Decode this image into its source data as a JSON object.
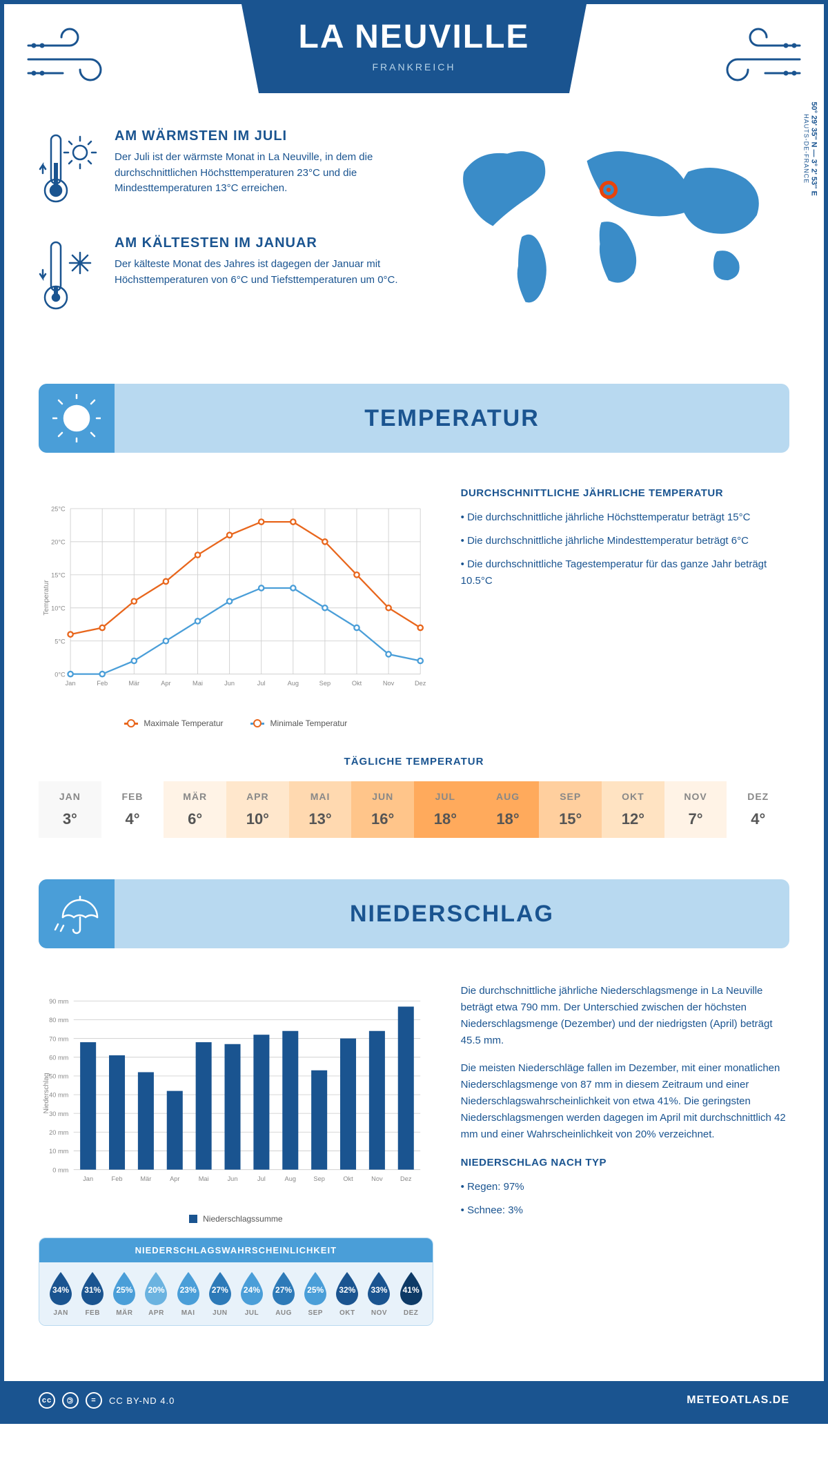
{
  "colors": {
    "primary": "#1a5490",
    "accent": "#4a9ed8",
    "light_blue": "#b8d9f0",
    "pale_blue": "#e8f2fa",
    "orange_line": "#e8661c",
    "blue_line": "#4a9ed8",
    "grid": "#d0d0d0",
    "text_grey": "#888888",
    "marker": "#e8440c"
  },
  "header": {
    "title": "LA NEUVILLE",
    "subtitle": "FRANKREICH"
  },
  "coords": {
    "lat_lon": "50° 29' 35'' N — 3° 2' 53'' E",
    "region": "HAUTS-DE-FRANCE"
  },
  "facts": {
    "warm": {
      "title": "AM WÄRMSTEN IM JULI",
      "body": "Der Juli ist der wärmste Monat in La Neuville, in dem die durchschnittlichen Höchsttemperaturen 23°C und die Mindesttemperaturen 13°C erreichen."
    },
    "cold": {
      "title": "AM KÄLTESTEN IM JANUAR",
      "body": "Der kälteste Monat des Jahres ist dagegen der Januar mit Höchsttemperaturen von 6°C und Tiefsttemperaturen um 0°C."
    }
  },
  "sections": {
    "temp": "TEMPERATUR",
    "precip": "NIEDERSCHLAG"
  },
  "temp_chart": {
    "type": "line",
    "y_label": "Temperatur",
    "y_min": 0,
    "y_max": 25,
    "y_step": 5,
    "months": [
      "Jan",
      "Feb",
      "Mär",
      "Apr",
      "Mai",
      "Jun",
      "Jul",
      "Aug",
      "Sep",
      "Okt",
      "Nov",
      "Dez"
    ],
    "series": [
      {
        "name": "Maximale Temperatur",
        "color": "#e8661c",
        "values": [
          6,
          7,
          11,
          14,
          18,
          21,
          23,
          23,
          20,
          15,
          10,
          7
        ]
      },
      {
        "name": "Minimale Temperatur",
        "color": "#4a9ed8",
        "values": [
          0,
          0,
          2,
          5,
          8,
          11,
          13,
          13,
          10,
          7,
          3,
          2
        ]
      }
    ]
  },
  "temp_text": {
    "heading": "DURCHSCHNITTLICHE JÄHRLICHE TEMPERATUR",
    "bullets": [
      "Die durchschnittliche jährliche Höchsttemperatur beträgt 15°C",
      "Die durchschnittliche jährliche Mindesttemperatur beträgt 6°C",
      "Die durchschnittliche Tagestemperatur für das ganze Jahr beträgt 10.5°C"
    ]
  },
  "daily_temp": {
    "heading": "TÄGLICHE TEMPERATUR",
    "months": [
      "JAN",
      "FEB",
      "MÄR",
      "APR",
      "MAI",
      "JUN",
      "JUL",
      "AUG",
      "SEP",
      "OKT",
      "NOV",
      "DEZ"
    ],
    "values": [
      "3°",
      "4°",
      "6°",
      "10°",
      "13°",
      "16°",
      "18°",
      "18°",
      "15°",
      "12°",
      "7°",
      "4°"
    ],
    "bg_colors": [
      "#f8f8f8",
      "#ffffff",
      "#fff3e6",
      "#ffe7cc",
      "#ffd9b0",
      "#ffc58a",
      "#ffaa5c",
      "#ffaa5c",
      "#ffcf9e",
      "#ffe3c2",
      "#fff3e6",
      "#ffffff"
    ]
  },
  "precip_chart": {
    "type": "bar",
    "y_label": "Niederschlag",
    "y_min": 0,
    "y_max": 90,
    "y_step": 10,
    "months": [
      "Jan",
      "Feb",
      "Mär",
      "Apr",
      "Mai",
      "Jun",
      "Jul",
      "Aug",
      "Sep",
      "Okt",
      "Nov",
      "Dez"
    ],
    "values": [
      68,
      61,
      52,
      42,
      68,
      67,
      72,
      74,
      53,
      70,
      74,
      87
    ],
    "bar_color": "#1a5490",
    "legend": "Niederschlagssumme"
  },
  "precip_text": {
    "p1": "Die durchschnittliche jährliche Niederschlagsmenge in La Neuville beträgt etwa 790 mm. Der Unterschied zwischen der höchsten Niederschlagsmenge (Dezember) und der niedrigsten (April) beträgt 45.5 mm.",
    "p2": "Die meisten Niederschläge fallen im Dezember, mit einer monatlichen Niederschlagsmenge von 87 mm in diesem Zeitraum und einer Niederschlagswahrscheinlichkeit von etwa 41%. Die geringsten Niederschlagsmengen werden dagegen im April mit durchschnittlich 42 mm und einer Wahrscheinlichkeit von 20% verzeichnet.",
    "type_heading": "NIEDERSCHLAG NACH TYP",
    "type_bullets": [
      "Regen: 97%",
      "Schnee: 3%"
    ]
  },
  "precip_prob": {
    "heading": "NIEDERSCHLAGSWAHRSCHEINLICHKEIT",
    "months": [
      "JAN",
      "FEB",
      "MÄR",
      "APR",
      "MAI",
      "JUN",
      "JUL",
      "AUG",
      "SEP",
      "OKT",
      "NOV",
      "DEZ"
    ],
    "values": [
      "34%",
      "31%",
      "25%",
      "20%",
      "23%",
      "27%",
      "24%",
      "27%",
      "25%",
      "32%",
      "33%",
      "41%"
    ],
    "drop_colors": [
      "#1a5490",
      "#1a5490",
      "#4a9ed8",
      "#6bb3e0",
      "#4a9ed8",
      "#2d7ab8",
      "#4a9ed8",
      "#2d7ab8",
      "#4a9ed8",
      "#1a5490",
      "#1a5490",
      "#0d3a66"
    ]
  },
  "footer": {
    "license": "CC BY-ND 4.0",
    "site": "METEOATLAS.DE"
  }
}
